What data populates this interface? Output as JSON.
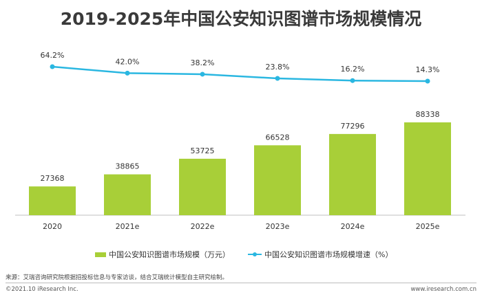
{
  "chart_data": {
    "type": "bar+line",
    "title": "2019-2025年中国公安知识图谱市场规模情况",
    "categories": [
      "2020",
      "2021e",
      "2022e",
      "2023e",
      "2024e",
      "2025e"
    ],
    "series": [
      {
        "name": "中国公安知识图谱市场规模（万元）",
        "type": "bar",
        "values": [
          27368,
          38865,
          53725,
          66528,
          77296,
          88338
        ],
        "color": "#a8cf38"
      },
      {
        "name": "中国公安知识图谱市场规模增速（%）",
        "type": "line",
        "values": [
          64.2,
          42.0,
          38.2,
          23.8,
          16.2,
          14.3
        ],
        "labels": [
          "64.2%",
          "42.0%",
          "38.2%",
          "23.8%",
          "16.2%",
          "14.3%"
        ],
        "color": "#2ab7e1"
      }
    ],
    "grid": false,
    "legend_position": "bottom"
  },
  "footer": {
    "source": "来源：艾瑞咨询研究院根据招投标信息与专家访谈，结合艾瑞统计模型自主研究绘制。",
    "copyright": "©2021.10 iResearch Inc.",
    "url": "www.iresearch.com.cn"
  }
}
